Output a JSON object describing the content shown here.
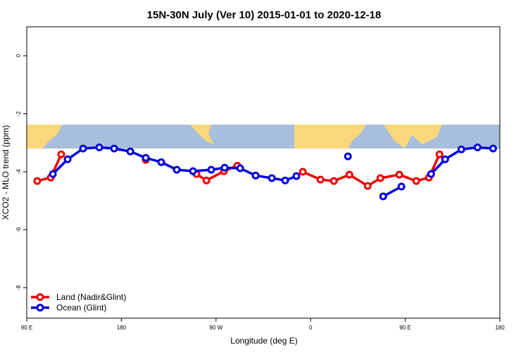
{
  "chart_data": {
    "type": "line",
    "title": "15N-30N July (Ver 10)   2015-01-01 to 2020-12-18",
    "x_label": "Longitude (deg E)",
    "y_label": "XCO2 - MLO trend (ppm)",
    "xlim": [
      90,
      540
    ],
    "ylim": [
      1.0,
      -9.05
    ],
    "xticks": [
      {
        "value": 90,
        "label": "90 E"
      },
      180,
      {
        "value": 270,
        "label": "90 W"
      },
      {
        "value": 360,
        "label": "0"
      },
      {
        "value": 450,
        "label": "90 E"
      },
      {
        "value": 540,
        "label": "180"
      }
    ],
    "yticks": [
      0,
      -2,
      -4,
      -6,
      -8
    ],
    "legend": "bottom-left",
    "series": [
      {
        "name": "Land (Nadir&Glint)",
        "color": "#ee0000",
        "x": [
          100,
          112.8,
          122.8,
          null,
          203.2,
          null,
          251.4,
          260.9,
          277.6,
          290.3,
          null,
          352.6,
          369.4,
          382.1,
          396.9,
          414.3,
          426.4,
          444.4,
          460.5,
          472.6,
          482.6
        ],
        "values": [
          -4.32,
          -4.2,
          -3.4,
          null,
          -3.59,
          null,
          -4.08,
          -4.3,
          -3.98,
          -3.79,
          null,
          -4.0,
          -4.27,
          -4.32,
          -4.1,
          -4.49,
          -4.22,
          -4.1,
          -4.32,
          -4.2,
          -3.4
        ]
      },
      {
        "name": "Ocean (Glint)",
        "color": "#0000dd",
        "x": [
          114.8,
          128.9,
          143.6,
          159,
          173.1,
          188.5,
          203.2,
          217.9,
          232.7,
          248.1,
          265.5,
          278.2,
          293,
          307.7,
          323.1,
          335.8,
          346.5,
          null,
          395.5,
          null,
          429,
          446.4,
          null,
          474.6,
          488,
          503.4,
          518.8,
          533.6
        ],
        "values": [
          -4.08,
          -3.57,
          -3.2,
          -3.16,
          -3.2,
          -3.3,
          -3.52,
          -3.67,
          -3.93,
          -3.98,
          -3.93,
          -3.86,
          -3.88,
          -4.13,
          -4.22,
          -4.3,
          -4.15,
          null,
          -3.47,
          null,
          -4.85,
          -4.51,
          null,
          -4.08,
          -3.57,
          -3.23,
          -3.16,
          -3.2
        ]
      }
    ]
  }
}
